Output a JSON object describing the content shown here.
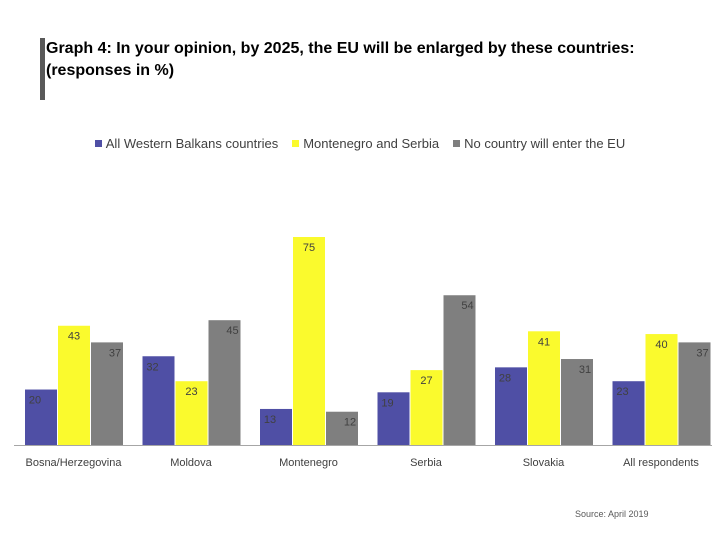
{
  "title": "Graph 4: In your opinion, by 2025, the EU will be enlarged by these countries: (responses in %)",
  "source": "Source: April 2019",
  "colors": {
    "western_balkans": "#4F4FA5",
    "montenegro_serbia": "#FAFA2D",
    "no_country": "#7F7F7F",
    "axis": "#A6A6A6",
    "text": "#404040"
  },
  "legend": [
    {
      "label": "All Western Balkans countries",
      "color": "#4F4FA5"
    },
    {
      "label": "Montenegro and Serbia",
      "color": "#FAFA2D"
    },
    {
      "label": "No country will enter the EU",
      "color": "#7F7F7F"
    }
  ],
  "chart_data": {
    "type": "bar",
    "title": "Graph 4: In your opinion, by 2025, the EU will be enlarged by these countries: (responses in %)",
    "categories": [
      "Bosna/Herzegovina",
      "Moldova",
      "Montenegro",
      "Serbia",
      "Slovakia",
      "All respondents"
    ],
    "series": [
      {
        "name": "All Western Balkans countries",
        "values": [
          20,
          32,
          13,
          19,
          28,
          23
        ]
      },
      {
        "name": "Montenegro and Serbia",
        "values": [
          43,
          23,
          75,
          27,
          41,
          40
        ]
      },
      {
        "name": "No country will enter the EU",
        "values": [
          37,
          45,
          12,
          54,
          31,
          37
        ]
      }
    ],
    "ylim": [
      0,
      80
    ],
    "grid": false,
    "legend_position": "top"
  }
}
